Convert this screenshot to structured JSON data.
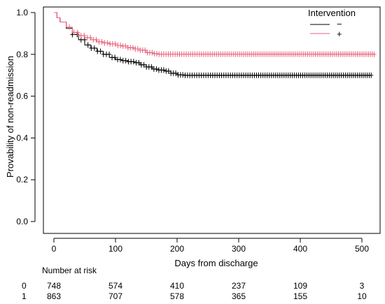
{
  "chart_data": {
    "type": "line",
    "title": "",
    "xlabel": "Days from discharge",
    "ylabel": "Provability of non-readmission",
    "xlim": [
      0,
      530
    ],
    "ylim": [
      0,
      1.0
    ],
    "x_ticks": [
      "0",
      "100",
      "200",
      "300",
      "400",
      "500"
    ],
    "y_ticks": [
      "0.0",
      "0.2",
      "0.4",
      "0.6",
      "0.8",
      "1.0"
    ],
    "grid": false,
    "legend": {
      "title": "Intervention",
      "placement": "top-right",
      "entries": [
        {
          "label": "−",
          "color": "#000000"
        },
        {
          "label": "+",
          "color": "#e8607a"
        }
      ]
    },
    "series": [
      {
        "label": "−",
        "color": "#000000",
        "points": [
          [
            0,
            1.0
          ],
          [
            5,
            0.975
          ],
          [
            10,
            0.955
          ],
          [
            20,
            0.925
          ],
          [
            30,
            0.895
          ],
          [
            40,
            0.87
          ],
          [
            50,
            0.845
          ],
          [
            60,
            0.83
          ],
          [
            70,
            0.815
          ],
          [
            80,
            0.8
          ],
          [
            90,
            0.785
          ],
          [
            100,
            0.775
          ],
          [
            110,
            0.77
          ],
          [
            120,
            0.765
          ],
          [
            130,
            0.76
          ],
          [
            140,
            0.75
          ],
          [
            150,
            0.74
          ],
          [
            160,
            0.73
          ],
          [
            170,
            0.725
          ],
          [
            180,
            0.72
          ],
          [
            190,
            0.71
          ],
          [
            200,
            0.702
          ],
          [
            210,
            0.7
          ],
          [
            515,
            0.7
          ]
        ],
        "censor_range": [
          30,
          515
        ],
        "censor_count": 130
      },
      {
        "label": "+",
        "color": "#e8607a",
        "points": [
          [
            0,
            1.0
          ],
          [
            5,
            0.975
          ],
          [
            10,
            0.955
          ],
          [
            20,
            0.93
          ],
          [
            30,
            0.905
          ],
          [
            40,
            0.89
          ],
          [
            50,
            0.88
          ],
          [
            60,
            0.87
          ],
          [
            70,
            0.86
          ],
          [
            80,
            0.855
          ],
          [
            90,
            0.85
          ],
          [
            100,
            0.843
          ],
          [
            110,
            0.84
          ],
          [
            120,
            0.832
          ],
          [
            130,
            0.826
          ],
          [
            140,
            0.82
          ],
          [
            150,
            0.808
          ],
          [
            160,
            0.803
          ],
          [
            170,
            0.801
          ],
          [
            520,
            0.8
          ]
        ],
        "censor_range": [
          25,
          520
        ],
        "censor_count": 140
      }
    ]
  },
  "risk_table": {
    "title": "Number at risk",
    "rows": [
      {
        "group": "0",
        "counts": [
          "748",
          "574",
          "410",
          "237",
          "109",
          "3"
        ]
      },
      {
        "group": "1",
        "counts": [
          "863",
          "707",
          "578",
          "365",
          "155",
          "10"
        ]
      }
    ]
  }
}
